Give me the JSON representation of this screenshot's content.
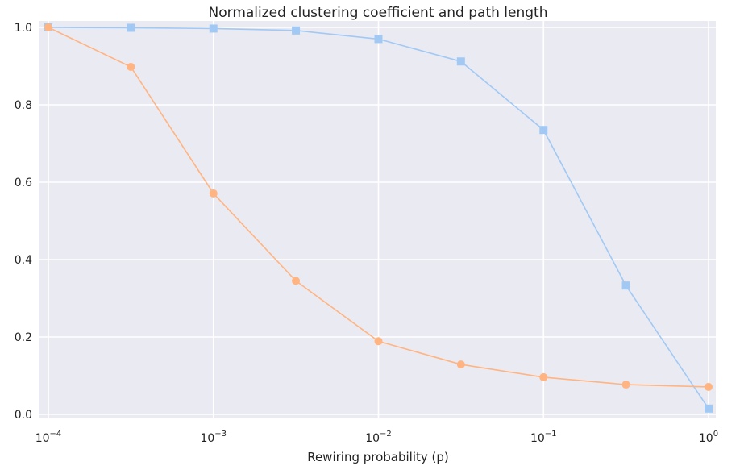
{
  "chart_data": {
    "type": "line",
    "title": "Normalized clustering coefficient and path length",
    "xlabel": "Rewiring probability (p)",
    "ylabel": "",
    "x_scale": "log",
    "xlim": [
      0.0001,
      1
    ],
    "ylim": [
      0,
      1
    ],
    "grid": true,
    "legend": "none",
    "x": [
      0.0001,
      0.000316,
      0.001,
      0.00316,
      0.01,
      0.0316,
      0.1,
      0.316,
      1
    ],
    "x_ticks": [
      {
        "value": 0.0001,
        "base": "10",
        "exp": "−4"
      },
      {
        "value": 0.001,
        "base": "10",
        "exp": "−3"
      },
      {
        "value": 0.01,
        "base": "10",
        "exp": "−2"
      },
      {
        "value": 0.1,
        "base": "10",
        "exp": "−1"
      },
      {
        "value": 1,
        "base": "10",
        "exp": "0"
      }
    ],
    "y_ticks": [
      {
        "value": 0.0,
        "label": "0.0"
      },
      {
        "value": 0.2,
        "label": "0.2"
      },
      {
        "value": 0.4,
        "label": "0.4"
      },
      {
        "value": 0.6,
        "label": "0.6"
      },
      {
        "value": 0.8,
        "label": "0.8"
      },
      {
        "value": 1.0,
        "label": "1.0"
      }
    ],
    "series": [
      {
        "marker": "square",
        "color": "#a1c9f4",
        "values": [
          1.0,
          0.999,
          0.997,
          0.992,
          0.97,
          0.912,
          0.735,
          0.333,
          0.015
        ]
      },
      {
        "marker": "circle",
        "color": "#ffb482",
        "values": [
          1.0,
          0.898,
          0.571,
          0.345,
          0.189,
          0.129,
          0.096,
          0.077,
          0.071
        ]
      }
    ],
    "colors": {
      "plot_background": "#eaeaf2",
      "grid": "#ffffff",
      "text": "#222222"
    }
  }
}
